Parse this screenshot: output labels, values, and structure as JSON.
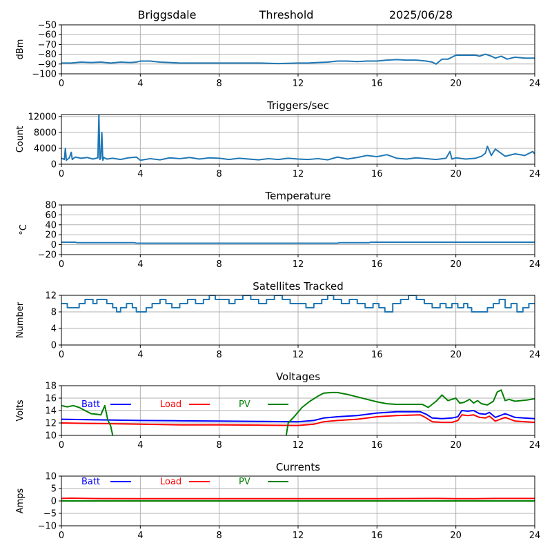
{
  "header": {
    "station": "Briggsdale",
    "mode": "Threshold",
    "date": "2025/06/28"
  },
  "colors": {
    "default_series": "#1f77b4",
    "batt": "#0000ff",
    "load": "#ff0000",
    "pv": "#008000",
    "grid": "#b0b0b0"
  },
  "chart_data": [
    {
      "type": "line",
      "title": "",
      "xlabel": "",
      "ylabel": "dBm",
      "xlim": [
        0,
        24
      ],
      "ylim": [
        -100,
        -50
      ],
      "xticks": [
        0,
        4,
        8,
        12,
        16,
        20,
        24
      ],
      "yticks": [
        -100,
        -90,
        -80,
        -70,
        -60,
        -50
      ],
      "ytick_labels": [
        "−100",
        "−90",
        "−80",
        "−70",
        "−60",
        "−50"
      ],
      "grid": true,
      "series": [
        {
          "color_key": "default_series",
          "x": [
            0,
            0.5,
            1,
            1.5,
            2,
            2.5,
            3,
            3.5,
            3.8,
            4,
            4.5,
            5,
            5.5,
            6,
            7,
            8,
            9,
            10,
            11,
            12,
            12.5,
            13,
            13.5,
            14,
            14.5,
            15,
            15.5,
            16,
            16.5,
            17,
            17.5,
            18,
            18.5,
            18.8,
            19,
            19.3,
            19.6,
            19.8,
            20,
            20.5,
            21,
            21.2,
            21.5,
            21.8,
            22,
            22.3,
            22.6,
            23,
            23.5,
            24
          ],
          "y": [
            -89,
            -89,
            -88,
            -88.5,
            -88,
            -89,
            -88,
            -88.5,
            -88,
            -87,
            -87,
            -88,
            -88.5,
            -89,
            -89,
            -89,
            -89,
            -89,
            -89.5,
            -89,
            -89,
            -88.5,
            -88,
            -87,
            -87,
            -87.5,
            -87,
            -87,
            -86,
            -85.5,
            -86,
            -86,
            -87,
            -88,
            -90,
            -85,
            -85,
            -83,
            -81,
            -81,
            -81,
            -82,
            -80,
            -82,
            -84,
            -82,
            -85,
            -83,
            -84,
            -84
          ]
        }
      ]
    },
    {
      "type": "line",
      "title": "Triggers/sec",
      "xlabel": "",
      "ylabel": "Count",
      "xlim": [
        0,
        24
      ],
      "ylim": [
        0,
        12500
      ],
      "xticks": [
        0,
        4,
        8,
        12,
        16,
        20,
        24
      ],
      "yticks": [
        0,
        4000,
        8000,
        12000
      ],
      "ytick_labels": [
        "0",
        "4000",
        "8000",
        "12000"
      ],
      "grid": true,
      "series": [
        {
          "color_key": "default_series",
          "x": [
            0,
            0.15,
            0.2,
            0.25,
            0.4,
            0.5,
            0.55,
            0.7,
            1,
            1.3,
            1.6,
            1.85,
            1.9,
            1.95,
            2.0,
            2.05,
            2.1,
            2.15,
            2.3,
            2.6,
            3,
            3.4,
            3.8,
            4,
            4.5,
            5,
            5.5,
            6,
            6.5,
            7,
            7.5,
            8,
            8.5,
            9,
            9.5,
            10,
            10.5,
            11,
            11.5,
            12,
            12.5,
            13,
            13.5,
            14,
            14.5,
            15,
            15.5,
            16,
            16.5,
            17,
            17.5,
            18,
            18.5,
            19,
            19.5,
            19.7,
            19.8,
            20,
            20.5,
            21,
            21.3,
            21.5,
            21.6,
            21.8,
            22,
            22.5,
            23,
            23.5,
            23.9,
            24
          ],
          "y": [
            1500,
            1200,
            4000,
            1000,
            1600,
            3000,
            1200,
            1800,
            1500,
            1700,
            1300,
            1600,
            12500,
            1200,
            1500,
            8000,
            1000,
            1700,
            1300,
            1500,
            1200,
            1600,
            1800,
            1000,
            1400,
            1100,
            1600,
            1400,
            1700,
            1300,
            1600,
            1500,
            1200,
            1500,
            1300,
            1100,
            1400,
            1200,
            1500,
            1300,
            1200,
            1400,
            1100,
            1800,
            1300,
            1700,
            2200,
            1900,
            2400,
            1500,
            1300,
            1600,
            1400,
            1200,
            1500,
            3200,
            1300,
            1600,
            1300,
            1500,
            2000,
            2800,
            4500,
            2200,
            3800,
            2000,
            2600,
            2200,
            3200,
            2600
          ]
        }
      ]
    },
    {
      "type": "line",
      "title": "Temperature",
      "xlabel": "",
      "ylabel": "°C",
      "xlim": [
        0,
        24
      ],
      "ylim": [
        -20,
        80
      ],
      "xticks": [
        0,
        4,
        8,
        12,
        16,
        20,
        24
      ],
      "yticks": [
        -20,
        0,
        20,
        40,
        60,
        80
      ],
      "ytick_labels": [
        "−20",
        "0",
        "20",
        "40",
        "60",
        "80"
      ],
      "grid": true,
      "series": [
        {
          "color_key": "default_series",
          "x": [
            0,
            0.7,
            0.8,
            3.7,
            3.8,
            14,
            14.1,
            15.6,
            15.7,
            24
          ],
          "y": [
            5,
            5,
            4,
            4,
            3,
            3,
            4,
            4,
            5,
            5
          ]
        }
      ]
    },
    {
      "type": "line",
      "title": "Satellites Tracked",
      "xlabel": "",
      "ylabel": "Number",
      "xlim": [
        0,
        24
      ],
      "ylim": [
        0,
        12
      ],
      "xticks": [
        0,
        4,
        8,
        12,
        16,
        20,
        24
      ],
      "yticks": [
        0,
        4,
        8,
        12
      ],
      "ytick_labels": [
        "0",
        "4",
        "8",
        "12"
      ],
      "grid": true,
      "series": [
        {
          "color_key": "default_series",
          "step": true,
          "x": [
            0,
            0.3,
            0.6,
            0.9,
            1.2,
            1.6,
            1.8,
            2.3,
            2.6,
            2.8,
            3.0,
            3.3,
            3.6,
            3.8,
            4.0,
            4.3,
            4.6,
            5.0,
            5.3,
            5.6,
            6.0,
            6.4,
            6.8,
            7.2,
            7.5,
            7.8,
            8.1,
            8.5,
            8.8,
            9.2,
            9.6,
            10.0,
            10.4,
            10.8,
            11.2,
            11.6,
            12.0,
            12.4,
            12.8,
            13.2,
            13.5,
            13.8,
            14.2,
            14.6,
            15.0,
            15.4,
            15.8,
            16.1,
            16.4,
            16.8,
            17.2,
            17.6,
            18.0,
            18.4,
            18.8,
            19.2,
            19.5,
            19.8,
            20.1,
            20.4,
            20.6,
            20.8,
            21.2,
            21.6,
            21.9,
            22.2,
            22.5,
            22.8,
            23.1,
            23.4,
            23.7,
            24.0
          ],
          "y": [
            10,
            9,
            9,
            10,
            11,
            10,
            11,
            10,
            9,
            8,
            9,
            10,
            9,
            8,
            8,
            9,
            10,
            11,
            10,
            9,
            10,
            11,
            10,
            11,
            12,
            11,
            11,
            10,
            11,
            12,
            11,
            10,
            11,
            12,
            11,
            10,
            10,
            9,
            10,
            11,
            12,
            11,
            10,
            11,
            10,
            9,
            10,
            9,
            8,
            10,
            11,
            12,
            11,
            10,
            9,
            10,
            9,
            10,
            9,
            10,
            9,
            8,
            8,
            9,
            10,
            11,
            9,
            10,
            8,
            9,
            10,
            10
          ]
        }
      ]
    },
    {
      "type": "line",
      "title": "Voltages",
      "xlabel": "",
      "ylabel": "Volts",
      "xlim": [
        0,
        24
      ],
      "ylim": [
        10,
        18
      ],
      "xticks": [
        0,
        4,
        8,
        12,
        16,
        20,
        24
      ],
      "yticks": [
        10,
        12,
        14,
        16,
        18
      ],
      "ytick_labels": [
        "10",
        "12",
        "14",
        "16",
        "18"
      ],
      "grid": true,
      "legend": "top-left",
      "series": [
        {
          "name": "Batt",
          "color_key": "batt",
          "x": [
            0,
            2,
            4,
            6,
            8,
            10,
            12,
            12.8,
            13.3,
            14,
            15,
            16,
            17,
            18.2,
            18.5,
            18.8,
            19.3,
            19.8,
            20.1,
            20.3,
            20.6,
            20.9,
            21.2,
            21.5,
            21.7,
            22.0,
            22.5,
            23.0,
            24
          ],
          "y": [
            12.6,
            12.5,
            12.4,
            12.35,
            12.3,
            12.25,
            12.2,
            12.4,
            12.8,
            13.0,
            13.2,
            13.6,
            13.8,
            13.8,
            13.4,
            12.8,
            12.7,
            12.8,
            13.0,
            14.0,
            13.9,
            14.0,
            13.5,
            13.4,
            13.7,
            12.9,
            13.5,
            12.9,
            12.7
          ]
        },
        {
          "name": "Load",
          "color_key": "load",
          "x": [
            0,
            2,
            4,
            6,
            8,
            10,
            12,
            12.8,
            13.3,
            14,
            15,
            16,
            17,
            18.2,
            18.5,
            18.8,
            19.3,
            19.8,
            20.1,
            20.3,
            20.6,
            20.9,
            21.2,
            21.5,
            21.7,
            22.0,
            22.5,
            23.0,
            24
          ],
          "y": [
            12.0,
            11.9,
            11.8,
            11.7,
            11.7,
            11.65,
            11.6,
            11.8,
            12.2,
            12.4,
            12.6,
            13.0,
            13.2,
            13.3,
            12.8,
            12.2,
            12.1,
            12.1,
            12.4,
            13.3,
            13.2,
            13.3,
            12.9,
            12.8,
            13.1,
            12.3,
            12.9,
            12.3,
            12.1
          ]
        },
        {
          "name": "PV",
          "color_key": "pv",
          "segments": [
            {
              "x": [
                0,
                0.3,
                0.6,
                0.9,
                1.2,
                1.5,
                1.8,
                2.0,
                2.2,
                2.35,
                2.5,
                2.6
              ],
              "y": [
                14.8,
                14.6,
                14.8,
                14.5,
                14.0,
                13.5,
                13.4,
                13.3,
                14.8,
                12.5,
                11.5,
                10
              ]
            },
            {
              "x": [
                11.4,
                11.5,
                11.8,
                12.2,
                12.6,
                13.0,
                13.3,
                13.7,
                14.0,
                14.5,
                15.0,
                15.5,
                16.0,
                16.5,
                17.0,
                17.5,
                18.3,
                18.6,
                19.0,
                19.3,
                19.6,
                20.0,
                20.2,
                20.4,
                20.7,
                20.9,
                21.1,
                21.3,
                21.6,
                21.9,
                22.1,
                22.3,
                22.5,
                22.7,
                23.0,
                23.3,
                23.6,
                24.0
              ],
              "y": [
                10,
                12.0,
                13.0,
                14.5,
                15.5,
                16.3,
                16.8,
                16.9,
                16.9,
                16.6,
                16.2,
                15.8,
                15.4,
                15.1,
                15.0,
                15.0,
                15.0,
                14.5,
                15.5,
                16.5,
                15.6,
                16.0,
                15.2,
                15.3,
                15.8,
                15.2,
                15.6,
                15.1,
                14.9,
                15.5,
                17.0,
                17.3,
                15.6,
                15.8,
                15.5,
                15.6,
                15.7,
                15.9
              ]
            }
          ]
        }
      ]
    },
    {
      "type": "line",
      "title": "Currents",
      "xlabel": "",
      "ylabel": "Amps",
      "xlim": [
        0,
        24
      ],
      "ylim": [
        -10,
        10
      ],
      "xticks": [
        0,
        4,
        8,
        12,
        16,
        20,
        24
      ],
      "yticks": [
        -10,
        -5,
        0,
        5,
        10
      ],
      "ytick_labels": [
        "−10",
        "−5",
        "0",
        "5",
        "10"
      ],
      "grid": true,
      "legend": "top-left",
      "series": [
        {
          "name": "Batt",
          "color_key": "batt",
          "x": [
            0,
            4,
            8,
            12,
            16,
            20,
            24
          ],
          "y": [
            0,
            0,
            0,
            0,
            0,
            0,
            0
          ]
        },
        {
          "name": "Load",
          "color_key": "load",
          "x": [
            0,
            0.5,
            2,
            4,
            8,
            12,
            16,
            19,
            20,
            21,
            22,
            24
          ],
          "y": [
            1.0,
            1.1,
            0.95,
            0.9,
            0.9,
            0.9,
            0.9,
            1.0,
            0.9,
            0.9,
            1.0,
            1.0
          ]
        },
        {
          "name": "PV",
          "color_key": "pv",
          "x": [
            0,
            4,
            8,
            12,
            16,
            20,
            24
          ],
          "y": [
            0,
            0,
            0,
            0,
            0,
            0,
            0
          ]
        }
      ]
    }
  ]
}
